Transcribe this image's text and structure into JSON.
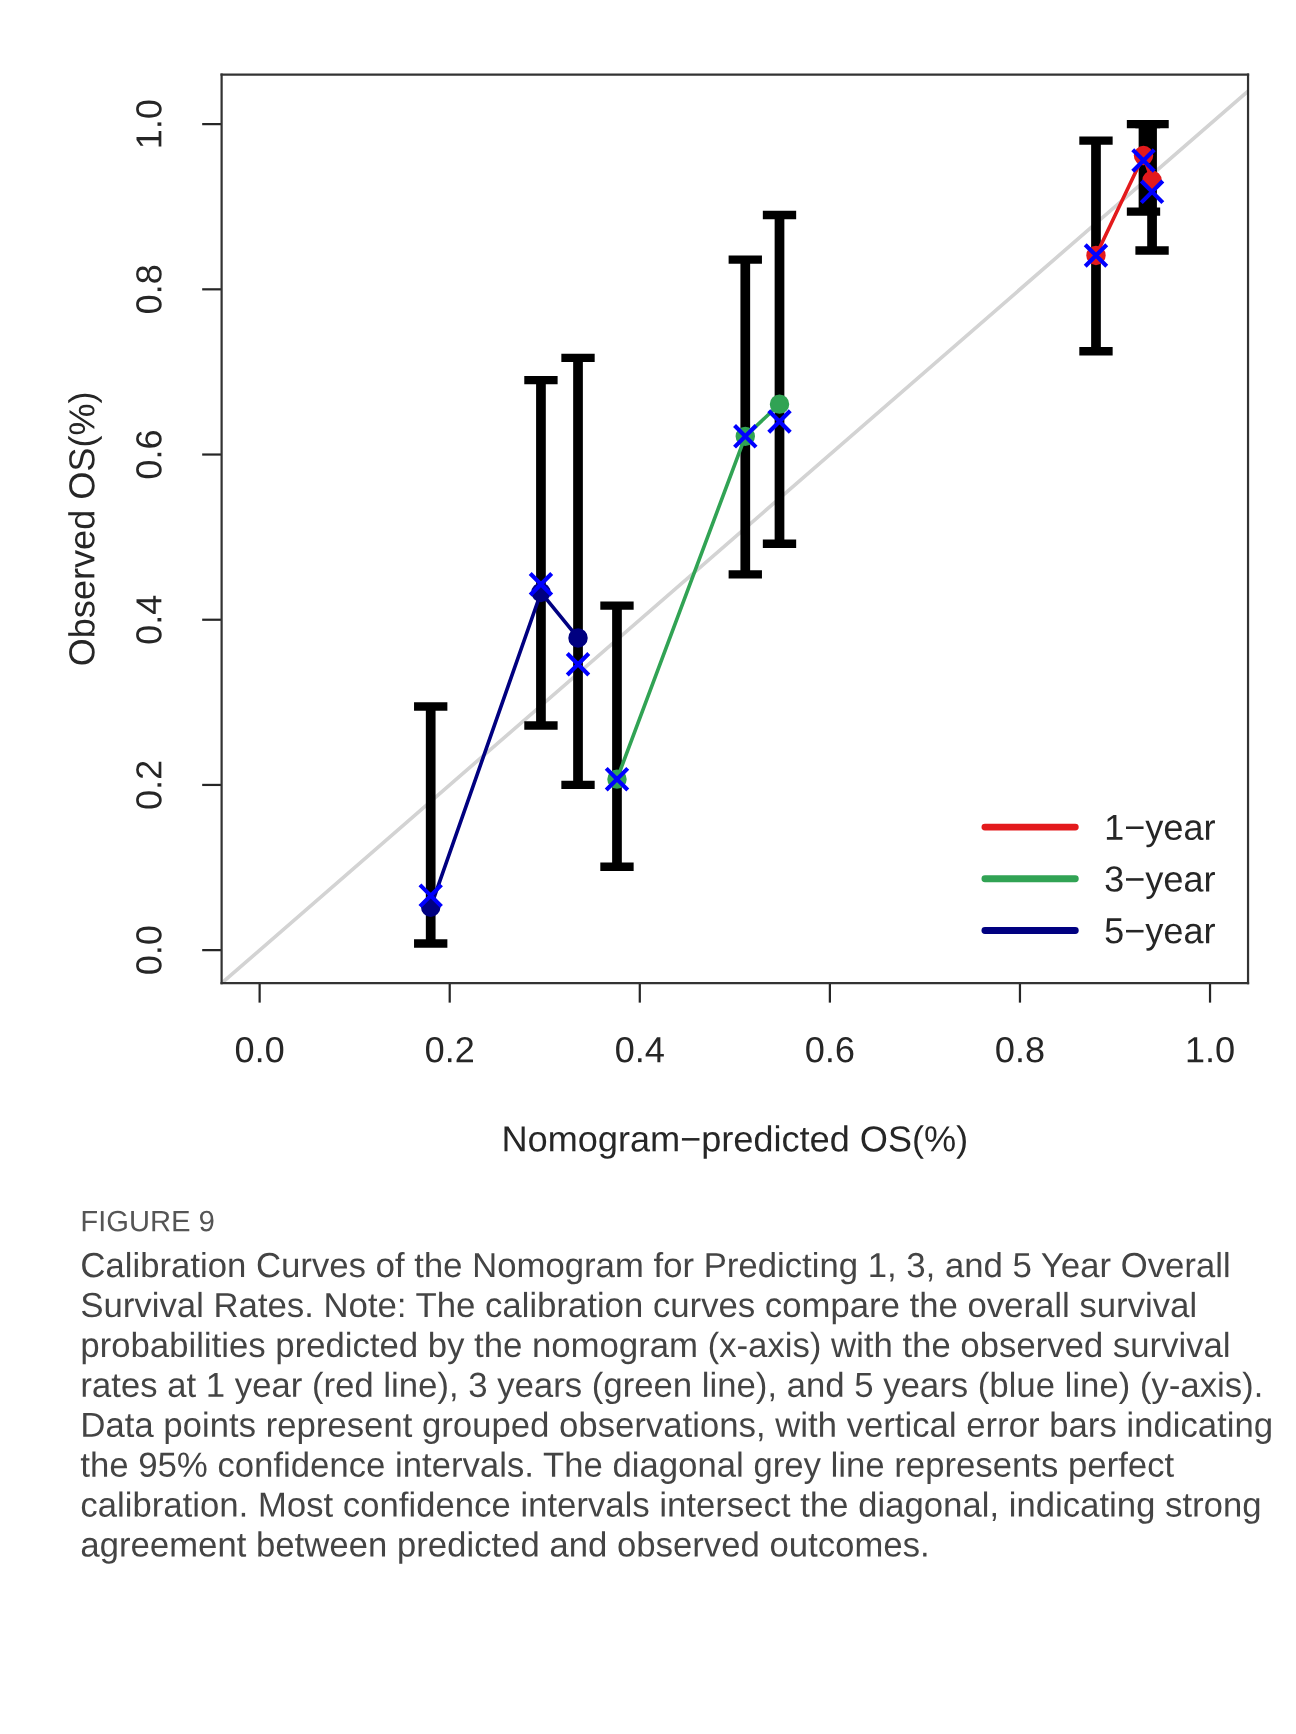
{
  "chart_data": {
    "type": "line",
    "xlabel": "Nomogram−predicted OS(%)",
    "ylabel": "Observed OS(%)",
    "xlim": [
      -0.04,
      1.04
    ],
    "ylim": [
      -0.04,
      1.06
    ],
    "xticks": [
      {
        "value": 0,
        "label": "0.0"
      },
      {
        "value": 0.2,
        "label": "0.2"
      },
      {
        "value": 0.4,
        "label": "0.4"
      },
      {
        "value": 0.6,
        "label": "0.6"
      },
      {
        "value": 0.8,
        "label": "0.8"
      },
      {
        "value": 1,
        "label": "1.0"
      }
    ],
    "yticks": [
      {
        "value": 0,
        "label": "0.0"
      },
      {
        "value": 0.2,
        "label": "0.2"
      },
      {
        "value": 0.4,
        "label": "0.4"
      },
      {
        "value": 0.6,
        "label": "0.6"
      },
      {
        "value": 0.8,
        "label": "0.8"
      },
      {
        "value": 1,
        "label": "1.0"
      }
    ],
    "grid": false,
    "legend": "bottom right",
    "marker": "circle",
    "line_style": "solid",
    "series": [
      {
        "color": "#d3d3d3",
        "marker": "none",
        "x": [
          -0.04,
          1.04
        ],
        "values": [
          -0.04,
          1.04
        ]
      },
      {
        "name": "1−year",
        "color": "#e31a1c",
        "x": [
          0.88,
          0.93,
          0.939
        ],
        "values": [
          0.841,
          0.962,
          0.932
        ],
        "errors": [
          [
            0.725,
            0.98
          ],
          [
            0.894,
            1.0
          ],
          [
            0.847,
            1.0
          ]
        ]
      },
      {
        "name": "3−year",
        "color": "#31a354",
        "x": [
          0.376,
          0.511,
          0.547
        ],
        "values": [
          0.207,
          0.622,
          0.661
        ],
        "errors": [
          [
            0.101,
            0.417
          ],
          [
            0.455,
            0.836
          ],
          [
            0.492,
            0.89
          ]
        ]
      },
      {
        "name": "5−year",
        "color": "#000080",
        "x": [
          0.18,
          0.296,
          0.335
        ],
        "values": [
          0.052,
          0.433,
          0.378
        ],
        "errors": [
          [
            0.008,
            0.295
          ],
          [
            0.272,
            0.69
          ],
          [
            0.2,
            0.717
          ]
        ]
      },
      {
        "type": "scatter",
        "color": "#0000ff",
        "marker": "cross",
        "x": [
          0.88,
          0.93,
          0.939,
          0.376,
          0.511,
          0.547,
          0.18,
          0.296,
          0.335
        ],
        "values": [
          0.841,
          0.956,
          0.918,
          0.207,
          0.622,
          0.64,
          0.066,
          0.443,
          0.346
        ]
      }
    ],
    "annotations": [
      "FIGURE 9",
      "Calibration Curves of the Nomogram for Predicting 1, 3, and 5 Year Overall Survival Rates. Note: The calibration curves compare the overall survival probabilities predicted by the nomogram (x-axis) with the observed survival rates at 1 year (red line), 3 years (green line), and 5 years (blue line) (y-axis). Data points represent grouped observations, with vertical error bars indicating the 95% confidence intervals. The diagonal grey line represents perfect calibration. Most confidence intervals intersect the diagonal, indicating strong agreement between predicted and observed outcomes."
    ]
  }
}
